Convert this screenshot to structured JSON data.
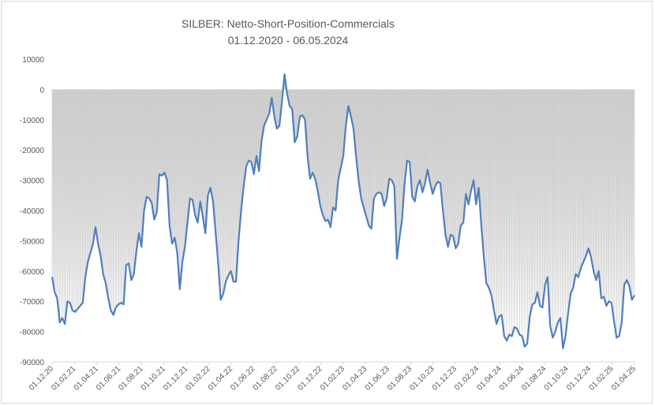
{
  "chart_data": {
    "type": "area",
    "title": "SILBER:  Netto-Short-Position-Commercials",
    "subtitle": "01.12.2020  -  06.05.2024",
    "xlabel": "",
    "ylabel": "",
    "ylim": [
      -90000,
      10000
    ],
    "yticks": [
      10000,
      0,
      -10000,
      -20000,
      -30000,
      -40000,
      -50000,
      -60000,
      -70000,
      -80000,
      -90000
    ],
    "ytick_labels": [
      "10000",
      "0",
      "-10000",
      "-20000",
      "-30000",
      "-40000",
      "-50000",
      "-60000",
      "-70000",
      "-80000",
      "-90000"
    ],
    "xtick_labels": [
      "01.12.20",
      "01.02.21",
      "01.04.21",
      "01.06.21",
      "01.08.21",
      "01.10.21",
      "01.12.21",
      "01.02.22",
      "01.04.22",
      "01.06.22",
      "01.08.22",
      "01.10.22",
      "01.12.22",
      "01.02.23",
      "01.04.23",
      "01.06.23",
      "01.08.23",
      "01.10.23",
      "01.12.23",
      "01.02.24",
      "01.04.24",
      "01.06.24",
      "01.08.24",
      "01.10.24",
      "01.12.24",
      "01.02.25",
      "01.04.25"
    ],
    "grid": false,
    "line_color": "#4f7fbd",
    "fill_top_color": "#a6a6a6",
    "fill_bottom_color": "#ffffff",
    "series": [
      {
        "values": [
          -62000,
          -67000,
          -69000,
          -77000,
          -75500,
          -77500,
          -70000,
          -70500,
          -73000,
          -73500,
          -72500,
          -71500,
          -70500,
          -62000,
          -57000,
          -54000,
          -51000,
          -45500,
          -51000,
          -55000,
          -61000,
          -64000,
          -69000,
          -73000,
          -74500,
          -72000,
          -71000,
          -70500,
          -71000,
          -58000,
          -57500,
          -63000,
          -61000,
          -53500,
          -47500,
          -52000,
          -40000,
          -35500,
          -36000,
          -37500,
          -43000,
          -40500,
          -28000,
          -28500,
          -27500,
          -30000,
          -45000,
          -51000,
          -49000,
          -54000,
          -66000,
          -57000,
          -52000,
          -44000,
          -36000,
          -36500,
          -41500,
          -44000,
          -37000,
          -42000,
          -47500,
          -35000,
          -32500,
          -37000,
          -47000,
          -57000,
          -69500,
          -67500,
          -63500,
          -61500,
          -60000,
          -63500,
          -63500,
          -50000,
          -40000,
          -32000,
          -25500,
          -23500,
          -24000,
          -28000,
          -22000,
          -27000,
          -17000,
          -12000,
          -10000,
          -8000,
          -2800,
          -9000,
          -13000,
          -12000,
          -4000,
          5000,
          -1500,
          -5500,
          -6500,
          -17500,
          -15500,
          -9000,
          -8500,
          -10000,
          -22000,
          -29500,
          -27500,
          -29500,
          -33500,
          -38500,
          -41500,
          -43500,
          -43000,
          -45500,
          -39000,
          -40000,
          -30000,
          -26000,
          -22000,
          -12000,
          -5500,
          -9000,
          -13000,
          -22000,
          -30000,
          -36000,
          -39000,
          -42000,
          -45000,
          -46000,
          -36000,
          -34500,
          -34000,
          -34500,
          -38500,
          -36000,
          -29500,
          -30000,
          -32000,
          -56000,
          -49000,
          -43000,
          -31000,
          -23500,
          -24000,
          -35500,
          -37000,
          -32000,
          -30000,
          -34000,
          -31000,
          -26500,
          -31000,
          -34500,
          -32000,
          -30500,
          -31000,
          -40000,
          -48000,
          -52000,
          -48000,
          -48500,
          -52500,
          -51000,
          -45000,
          -44000,
          -34500,
          -38000,
          -33500,
          -30000,
          -38000,
          -32500,
          -44500,
          -55000,
          -64000,
          -65500,
          -68000,
          -73000,
          -77500,
          -75000,
          -74500,
          -81500,
          -83000,
          -81000,
          -81500,
          -78500,
          -79000,
          -81000,
          -81500,
          -85000,
          -84000,
          -75000,
          -71000,
          -70500,
          -67000,
          -71500,
          -72000,
          -64500,
          -62000,
          -78000,
          -82000,
          -80000,
          -77000,
          -75500,
          -85500,
          -81500,
          -74000,
          -67500,
          -65500,
          -61000,
          -62000,
          -59000,
          -57000,
          -55000,
          -52500,
          -55500,
          -60000,
          -63000,
          -60000,
          -69000,
          -68500,
          -71500,
          -70000,
          -70500,
          -76500,
          -82000,
          -81500,
          -77000,
          -64500,
          -63000,
          -65000,
          -69500,
          -68000
        ]
      }
    ]
  }
}
